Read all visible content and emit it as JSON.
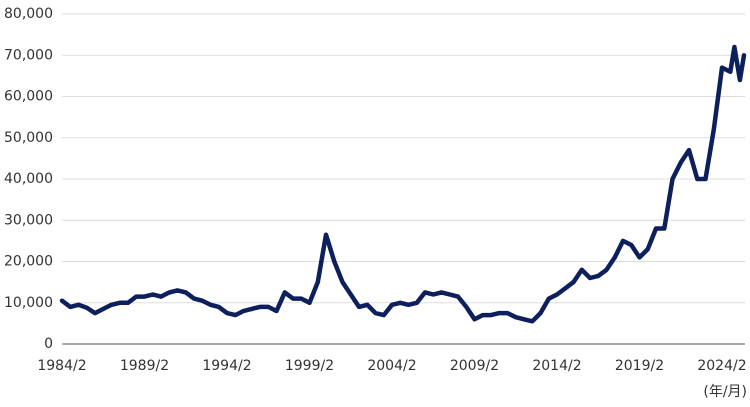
{
  "chart_data": {
    "type": "line",
    "x": [
      "1984/2",
      "1984/8",
      "1985/2",
      "1985/8",
      "1986/2",
      "1986/8",
      "1987/2",
      "1987/8",
      "1988/2",
      "1988/8",
      "1989/2",
      "1989/8",
      "1990/2",
      "1990/8",
      "1991/2",
      "1991/8",
      "1992/2",
      "1992/8",
      "1993/2",
      "1993/8",
      "1994/2",
      "1994/8",
      "1995/2",
      "1995/8",
      "1996/2",
      "1996/8",
      "1997/2",
      "1997/8",
      "1998/2",
      "1998/8",
      "1999/2",
      "1999/8",
      "2000/2",
      "2000/8",
      "2001/2",
      "2001/8",
      "2002/2",
      "2002/8",
      "2003/2",
      "2003/8",
      "2004/2",
      "2004/8",
      "2005/2",
      "2005/8",
      "2006/2",
      "2006/8",
      "2007/2",
      "2007/8",
      "2008/2",
      "2008/8",
      "2009/2",
      "2009/8",
      "2010/2",
      "2010/8",
      "2011/2",
      "2011/8",
      "2012/2",
      "2012/8",
      "2013/2",
      "2013/8",
      "2014/2",
      "2014/8",
      "2015/2",
      "2015/8",
      "2016/2",
      "2016/8",
      "2017/2",
      "2017/8",
      "2018/2",
      "2018/8",
      "2019/2",
      "2019/8",
      "2020/2",
      "2020/8",
      "2021/2",
      "2021/8",
      "2022/2",
      "2022/8",
      "2023/2",
      "2023/8",
      "2024/2",
      "2024/8",
      "2024/11",
      "2025/3",
      "2025/6"
    ],
    "series": [
      {
        "color": "#0d1f5c",
        "values": [
          10500,
          9000,
          9500,
          8800,
          7500,
          8500,
          9500,
          10000,
          10000,
          11500,
          11500,
          12000,
          11500,
          12500,
          13000,
          12500,
          11000,
          10500,
          9500,
          9000,
          7500,
          7000,
          8000,
          8500,
          9000,
          9000,
          8000,
          12500,
          11000,
          11000,
          10000,
          15000,
          26500,
          20000,
          15000,
          12000,
          9000,
          9500,
          7500,
          7000,
          9500,
          10000,
          9500,
          10000,
          12500,
          12000,
          12500,
          12000,
          11500,
          9000,
          6000,
          7000,
          7000,
          7500,
          7500,
          6500,
          6000,
          5500,
          7500,
          11000,
          12000,
          13500,
          15000,
          18000,
          16000,
          16500,
          18000,
          21000,
          25000,
          24000,
          21000,
          23000,
          28000,
          28000,
          40000,
          44000,
          47000,
          40000,
          40000,
          52000,
          67000,
          66000,
          72000,
          64000,
          70000
        ]
      }
    ],
    "ylim": [
      0,
      80000
    ],
    "yticks": [
      0,
      {
        "value": 10000,
        "label": "10,000"
      },
      {
        "value": 20000,
        "label": "20,000"
      },
      {
        "value": 30000,
        "label": "30,000"
      },
      {
        "value": 40000,
        "label": "40,000"
      },
      {
        "value": 50000,
        "label": "50,000"
      },
      {
        "value": 60000,
        "label": "60,000"
      },
      {
        "value": 70000,
        "label": "70,000"
      },
      {
        "value": 80000,
        "label": "80,000"
      }
    ],
    "xticks": [
      "1984/2",
      "1989/2",
      "1994/2",
      "1999/2",
      "2004/2",
      "2009/2",
      "2014/2",
      "2019/2",
      "2024/2"
    ],
    "x_unit_label": "(年/月)",
    "grid": true
  }
}
